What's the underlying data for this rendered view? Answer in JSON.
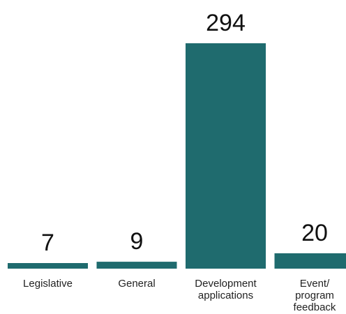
{
  "chart_data": {
    "type": "bar",
    "title": "",
    "xlabel": "",
    "ylabel": "",
    "categories": [
      [
        "Legislative"
      ],
      [
        "General"
      ],
      [
        "Development",
        "applications"
      ],
      [
        "Event/",
        "program",
        "feedback"
      ]
    ],
    "values": [
      7,
      9,
      294,
      20
    ],
    "value_labels": [
      "7",
      "9",
      "294",
      "20"
    ],
    "ylim": [
      0,
      294
    ],
    "bar_color": "#1f6b6e",
    "grid": false,
    "legend": "none"
  }
}
